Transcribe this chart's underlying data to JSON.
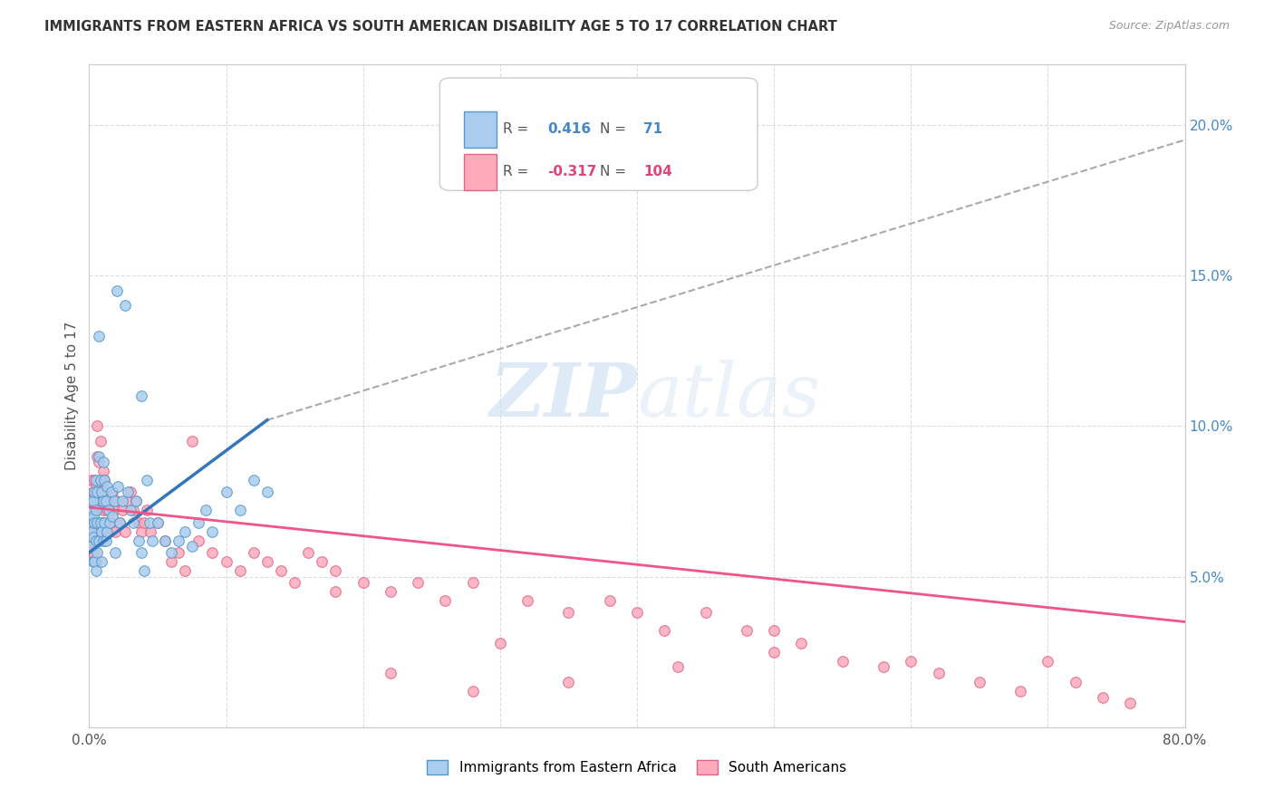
{
  "title": "IMMIGRANTS FROM EASTERN AFRICA VS SOUTH AMERICAN DISABILITY AGE 5 TO 17 CORRELATION CHART",
  "source": "Source: ZipAtlas.com",
  "ylabel": "Disability Age 5 to 17",
  "yticks_right": [
    "5.0%",
    "10.0%",
    "15.0%",
    "20.0%"
  ],
  "yticks_right_vals": [
    0.05,
    0.1,
    0.15,
    0.2
  ],
  "xlim": [
    0.0,
    0.8
  ],
  "ylim": [
    0.0,
    0.22
  ],
  "legend1_label": "Immigrants from Eastern Africa",
  "legend2_label": "South Americans",
  "r1": 0.416,
  "n1": 71,
  "r2": -0.317,
  "n2": 104,
  "color_blue_fill": "#aaccee",
  "color_blue_edge": "#5599cc",
  "color_blue_line": "#3377bb",
  "color_pink_fill": "#ffaabb",
  "color_pink_edge": "#dd6688",
  "color_pink_line": "#ee5588",
  "color_dashed": "#aaaaaa",
  "blue_scatter_x": [
    0.001,
    0.001,
    0.002,
    0.002,
    0.002,
    0.003,
    0.003,
    0.003,
    0.003,
    0.004,
    0.004,
    0.004,
    0.005,
    0.005,
    0.005,
    0.005,
    0.006,
    0.006,
    0.006,
    0.007,
    0.007,
    0.007,
    0.008,
    0.008,
    0.009,
    0.009,
    0.009,
    0.01,
    0.01,
    0.01,
    0.011,
    0.011,
    0.012,
    0.012,
    0.013,
    0.013,
    0.014,
    0.015,
    0.016,
    0.017,
    0.018,
    0.019,
    0.02,
    0.021,
    0.022,
    0.024,
    0.026,
    0.028,
    0.03,
    0.032,
    0.034,
    0.036,
    0.038,
    0.04,
    0.042,
    0.044,
    0.046,
    0.05,
    0.055,
    0.06,
    0.065,
    0.07,
    0.075,
    0.08,
    0.085,
    0.09,
    0.1,
    0.11,
    0.12,
    0.13,
    0.038
  ],
  "blue_scatter_y": [
    0.068,
    0.075,
    0.072,
    0.065,
    0.06,
    0.075,
    0.07,
    0.063,
    0.055,
    0.078,
    0.068,
    0.055,
    0.082,
    0.072,
    0.062,
    0.052,
    0.078,
    0.068,
    0.058,
    0.13,
    0.09,
    0.062,
    0.082,
    0.068,
    0.078,
    0.065,
    0.055,
    0.088,
    0.075,
    0.062,
    0.082,
    0.068,
    0.075,
    0.062,
    0.08,
    0.065,
    0.072,
    0.068,
    0.078,
    0.07,
    0.075,
    0.058,
    0.145,
    0.08,
    0.068,
    0.075,
    0.14,
    0.078,
    0.072,
    0.068,
    0.075,
    0.062,
    0.058,
    0.052,
    0.082,
    0.068,
    0.062,
    0.068,
    0.062,
    0.058,
    0.062,
    0.065,
    0.06,
    0.068,
    0.072,
    0.065,
    0.078,
    0.072,
    0.082,
    0.078,
    0.11
  ],
  "pink_scatter_x": [
    0.001,
    0.001,
    0.001,
    0.002,
    0.002,
    0.002,
    0.002,
    0.003,
    0.003,
    0.003,
    0.003,
    0.004,
    0.004,
    0.004,
    0.004,
    0.005,
    0.005,
    0.005,
    0.005,
    0.006,
    0.006,
    0.006,
    0.007,
    0.007,
    0.007,
    0.008,
    0.008,
    0.008,
    0.009,
    0.009,
    0.01,
    0.01,
    0.011,
    0.011,
    0.012,
    0.012,
    0.013,
    0.014,
    0.015,
    0.016,
    0.017,
    0.018,
    0.019,
    0.02,
    0.022,
    0.024,
    0.026,
    0.028,
    0.03,
    0.032,
    0.034,
    0.036,
    0.038,
    0.04,
    0.042,
    0.045,
    0.05,
    0.055,
    0.06,
    0.065,
    0.07,
    0.075,
    0.08,
    0.09,
    0.1,
    0.11,
    0.12,
    0.13,
    0.14,
    0.15,
    0.16,
    0.17,
    0.18,
    0.2,
    0.22,
    0.24,
    0.26,
    0.28,
    0.3,
    0.32,
    0.35,
    0.38,
    0.4,
    0.42,
    0.45,
    0.48,
    0.5,
    0.52,
    0.55,
    0.58,
    0.6,
    0.62,
    0.65,
    0.68,
    0.7,
    0.72,
    0.74,
    0.76,
    0.5,
    0.43,
    0.35,
    0.28,
    0.22,
    0.18
  ],
  "pink_scatter_y": [
    0.075,
    0.068,
    0.062,
    0.082,
    0.072,
    0.065,
    0.058,
    0.078,
    0.072,
    0.065,
    0.058,
    0.082,
    0.075,
    0.065,
    0.055,
    0.08,
    0.072,
    0.062,
    0.055,
    0.1,
    0.09,
    0.062,
    0.088,
    0.078,
    0.065,
    0.095,
    0.082,
    0.068,
    0.078,
    0.065,
    0.085,
    0.072,
    0.082,
    0.068,
    0.078,
    0.065,
    0.072,
    0.068,
    0.075,
    0.068,
    0.078,
    0.072,
    0.065,
    0.075,
    0.068,
    0.072,
    0.065,
    0.075,
    0.078,
    0.072,
    0.075,
    0.068,
    0.065,
    0.068,
    0.072,
    0.065,
    0.068,
    0.062,
    0.055,
    0.058,
    0.052,
    0.095,
    0.062,
    0.058,
    0.055,
    0.052,
    0.058,
    0.055,
    0.052,
    0.048,
    0.058,
    0.055,
    0.052,
    0.048,
    0.045,
    0.048,
    0.042,
    0.048,
    0.028,
    0.042,
    0.038,
    0.042,
    0.038,
    0.032,
    0.038,
    0.032,
    0.025,
    0.028,
    0.022,
    0.02,
    0.022,
    0.018,
    0.015,
    0.012,
    0.022,
    0.015,
    0.01,
    0.008,
    0.032,
    0.02,
    0.015,
    0.012,
    0.018,
    0.045
  ],
  "blue_line_x0": 0.0,
  "blue_line_x1": 0.13,
  "blue_line_y0": 0.058,
  "blue_line_y1": 0.102,
  "dash_line_x0": 0.13,
  "dash_line_x1": 0.8,
  "dash_line_y0": 0.102,
  "dash_line_y1": 0.195,
  "pink_line_x0": 0.0,
  "pink_line_x1": 0.8,
  "pink_line_y0": 0.073,
  "pink_line_y1": 0.035
}
